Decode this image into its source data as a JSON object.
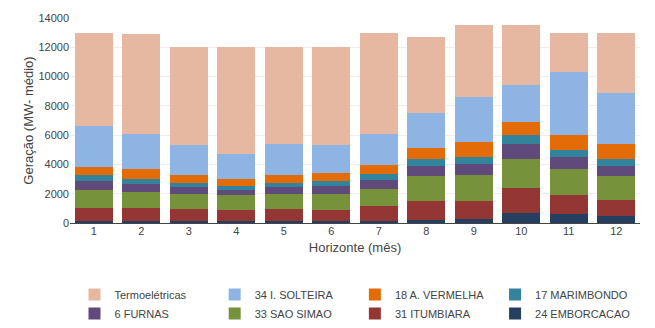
{
  "chart_data": {
    "type": "bar",
    "stacked": true,
    "xlabel": "Horizonte (mês)",
    "ylabel": "Geração (MW- médio)",
    "categories": [
      "1",
      "2",
      "3",
      "4",
      "5",
      "6",
      "7",
      "8",
      "9",
      "10",
      "11",
      "12"
    ],
    "series": [
      {
        "name": "24 EMBORCACAO",
        "color": "#243F60",
        "values": [
          150,
          150,
          150,
          150,
          150,
          150,
          150,
          200,
          300,
          700,
          600,
          500
        ]
      },
      {
        "name": "31 ITUMBIARA",
        "color": "#943634",
        "values": [
          900,
          850,
          800,
          750,
          800,
          750,
          1000,
          1300,
          1200,
          1700,
          1300,
          1100
        ]
      },
      {
        "name": "33 SAO SIMAO",
        "color": "#76933C",
        "values": [
          1200,
          1100,
          1050,
          1000,
          1050,
          1100,
          1200,
          1700,
          1800,
          2000,
          1800,
          1600
        ]
      },
      {
        "name": "6 FURNAS",
        "color": "#604A7B",
        "values": [
          600,
          550,
          450,
          350,
          450,
          500,
          600,
          700,
          700,
          1000,
          800,
          700
        ]
      },
      {
        "name": "17 MARIMBONDO",
        "color": "#31849B",
        "values": [
          400,
          350,
          250,
          250,
          300,
          350,
          400,
          500,
          500,
          600,
          500,
          500
        ]
      },
      {
        "name": "18 A. VERMELHA",
        "color": "#E36C09",
        "values": [
          600,
          700,
          600,
          500,
          550,
          550,
          600,
          700,
          1000,
          900,
          1000,
          1000
        ]
      },
      {
        "name": "34 I. SOLTEIRA",
        "color": "#8DB4E2",
        "values": [
          2800,
          2400,
          2000,
          1700,
          2100,
          1900,
          2100,
          2400,
          3100,
          2500,
          4300,
          3500
        ]
      },
      {
        "name": "Termoelétricas",
        "color": "#E6B8A2",
        "values": [
          6350,
          6800,
          6700,
          7300,
          6600,
          6700,
          6950,
          5200,
          4900,
          4100,
          2700,
          4100
        ]
      }
    ],
    "ylim": [
      0,
      14000
    ],
    "yticks": [
      0,
      2000,
      4000,
      6000,
      8000,
      10000,
      12000,
      14000
    ],
    "grid": true,
    "legend": "bottom"
  }
}
